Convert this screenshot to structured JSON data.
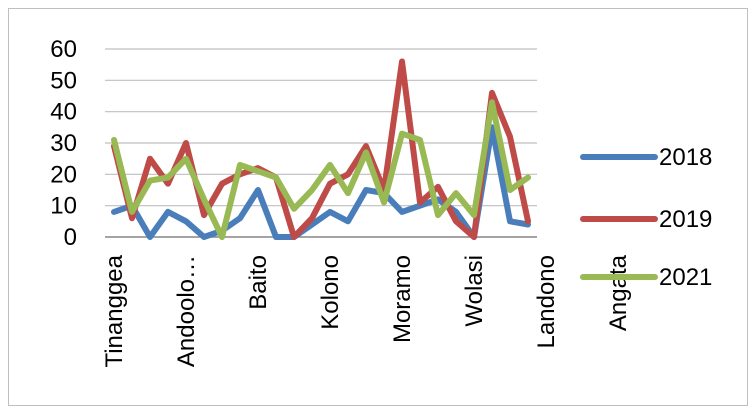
{
  "chart_data": {
    "type": "line",
    "title": "",
    "xlabel": "",
    "ylabel": "",
    "ylim": [
      0,
      60
    ],
    "yticks": [
      0,
      10,
      20,
      30,
      40,
      50,
      60
    ],
    "grid": true,
    "legend_position": "right",
    "x_tick_labels": [
      {
        "index": 0,
        "label": "Tinanggea"
      },
      {
        "index": 4,
        "label": "Andoolo…"
      },
      {
        "index": 8,
        "label": "Baito"
      },
      {
        "index": 12,
        "label": "Kolono"
      },
      {
        "index": 16,
        "label": "Moramo"
      },
      {
        "index": 20,
        "label": "Wolasi"
      },
      {
        "index": 24,
        "label": "Landono"
      },
      {
        "index": 28,
        "label": "Angata"
      }
    ],
    "series": [
      {
        "name": "2018",
        "color": "#4a7ebb",
        "values": [
          8,
          10,
          0,
          8,
          5,
          0,
          2,
          6,
          15,
          0,
          0,
          4,
          8,
          5,
          15,
          14,
          8,
          10,
          12,
          8,
          0,
          35,
          5,
          4
        ]
      },
      {
        "name": "2019",
        "color": "#be4b48",
        "values": [
          29,
          6,
          25,
          17,
          30,
          7,
          17,
          20,
          22,
          19,
          0,
          6,
          17,
          20,
          29,
          15,
          56,
          11,
          16,
          5,
          0,
          46,
          32,
          5
        ]
      },
      {
        "name": "2021",
        "color": "#98b954",
        "values": [
          31,
          8,
          18,
          19,
          25,
          12,
          0,
          23,
          21,
          19,
          9,
          15,
          23,
          14,
          27,
          11,
          33,
          31,
          7,
          14,
          7,
          43,
          15,
          19
        ]
      }
    ]
  }
}
